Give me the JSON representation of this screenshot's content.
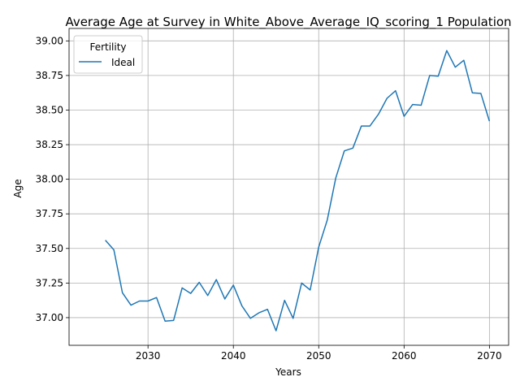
{
  "chart_data": {
    "type": "line",
    "title": "Average Age at Survey in White_Above_Average_IQ_scoring_1 Population",
    "xlabel": "Years",
    "ylabel": "Age",
    "xlim": [
      2020.75,
      2072.25
    ],
    "ylim": [
      36.8,
      39.09
    ],
    "xticks": [
      2030,
      2040,
      2050,
      2060,
      2070
    ],
    "yticks": [
      37.0,
      37.25,
      37.5,
      37.75,
      38.0,
      38.25,
      38.5,
      38.75,
      39.0
    ],
    "grid": true,
    "legend": {
      "title": "Fertility",
      "placement": "upper-left"
    },
    "series": [
      {
        "name": "Ideal",
        "color": "#1f77b4",
        "x": [
          2025,
          2026,
          2027,
          2028,
          2029,
          2030,
          2031,
          2032,
          2033,
          2034,
          2035,
          2036,
          2037,
          2038,
          2039,
          2040,
          2041,
          2042,
          2043,
          2044,
          2045,
          2046,
          2047,
          2048,
          2049,
          2050,
          2051,
          2052,
          2053,
          2054,
          2055,
          2056,
          2057,
          2058,
          2059,
          2060,
          2061,
          2062,
          2063,
          2064,
          2065,
          2066,
          2067,
          2068,
          2069,
          2070
        ],
        "y": [
          37.56,
          37.49,
          37.18,
          37.09,
          37.12,
          37.12,
          37.145,
          36.975,
          36.98,
          37.215,
          37.175,
          37.255,
          37.16,
          37.275,
          37.135,
          37.235,
          37.085,
          36.995,
          37.035,
          37.06,
          36.905,
          37.125,
          36.995,
          37.25,
          37.2,
          37.51,
          37.705,
          38.01,
          38.205,
          38.225,
          38.385,
          38.385,
          38.47,
          38.585,
          38.64,
          38.455,
          38.54,
          38.535,
          38.75,
          38.745,
          38.93,
          38.81,
          38.86,
          38.625,
          38.62,
          38.42
        ]
      }
    ]
  }
}
